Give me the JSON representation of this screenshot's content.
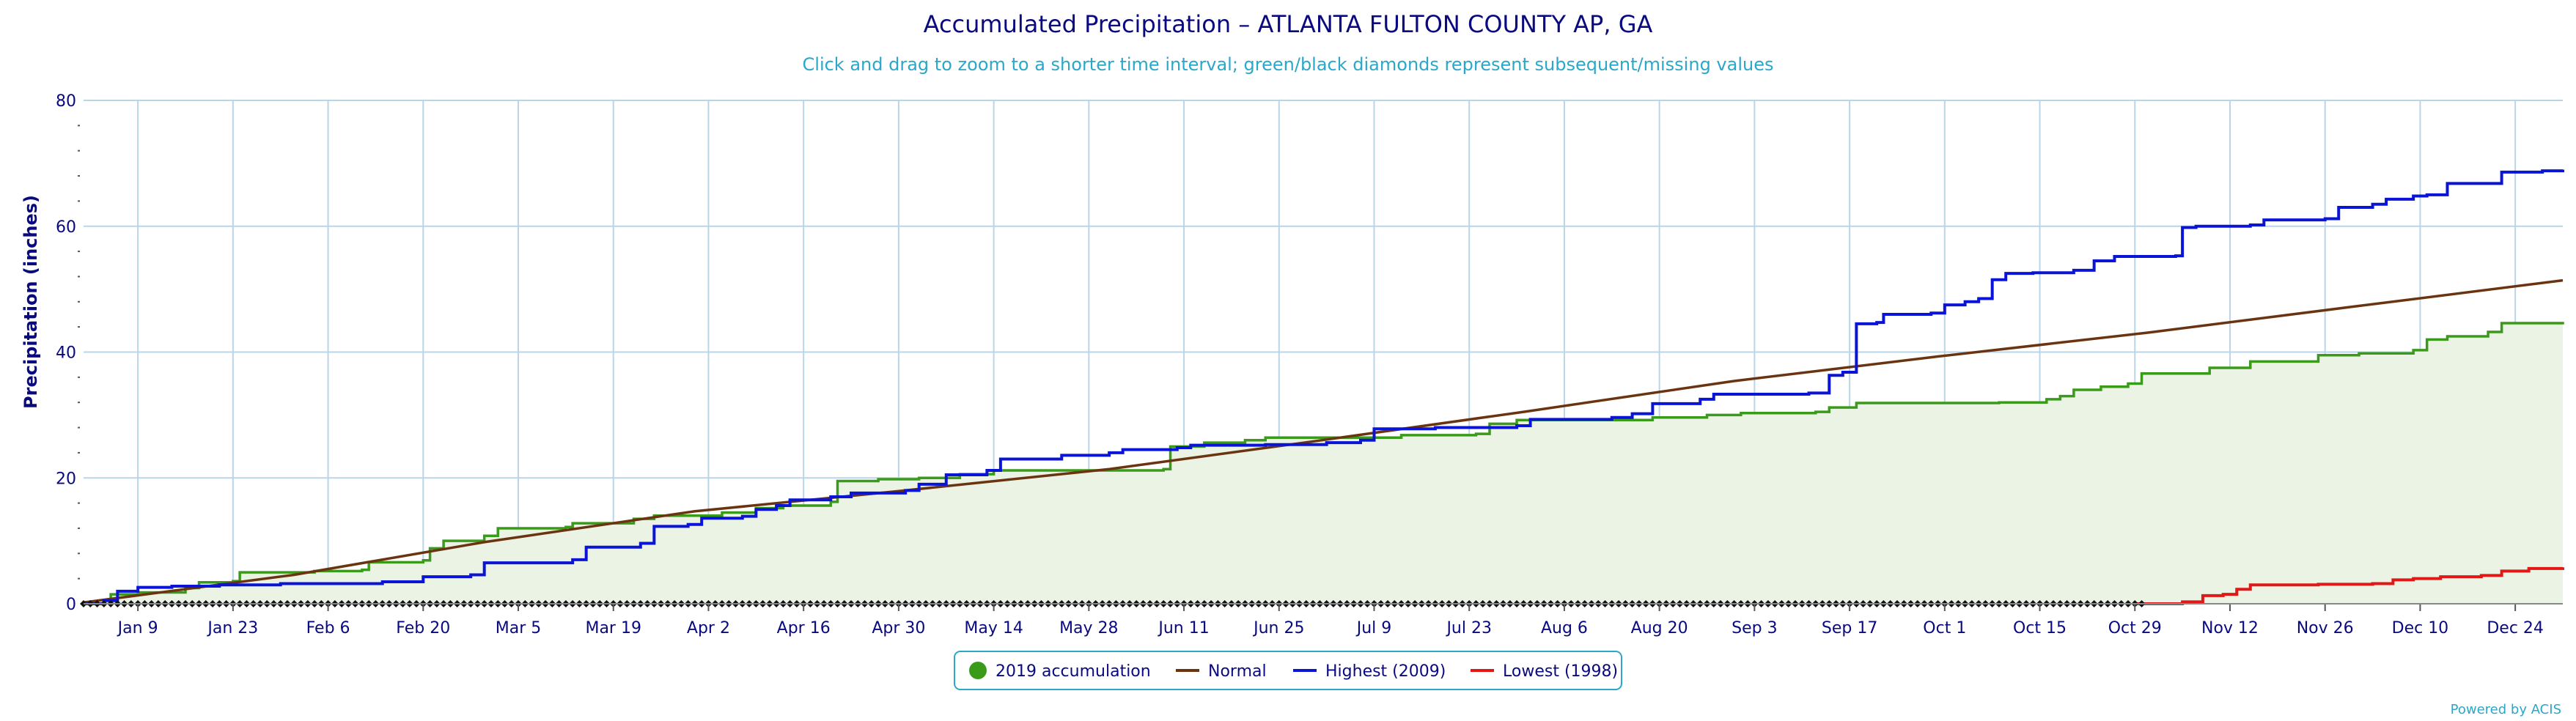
{
  "chart_data": {
    "type": "line",
    "title": "Accumulated Precipitation – ATLANTA FULTON COUNTY AP, GA",
    "subtitle": "Click and drag to zoom to a shorter time interval; green/black diamonds represent subsequent/missing values",
    "ylabel": "Precipitation (inches)",
    "xlabel": "",
    "ylim": [
      0,
      80
    ],
    "y_ticks": [
      0,
      20,
      40,
      60,
      80
    ],
    "x_range_days": [
      1,
      366
    ],
    "x_ticks": [
      {
        "label": "Jan 9",
        "day": 9
      },
      {
        "label": "Jan 23",
        "day": 23
      },
      {
        "label": "Feb 6",
        "day": 37
      },
      {
        "label": "Feb 20",
        "day": 51
      },
      {
        "label": "Mar 5",
        "day": 65
      },
      {
        "label": "Mar 19",
        "day": 79
      },
      {
        "label": "Apr 2",
        "day": 93
      },
      {
        "label": "Apr 16",
        "day": 107
      },
      {
        "label": "Apr 30",
        "day": 121
      },
      {
        "label": "May 14",
        "day": 135
      },
      {
        "label": "May 28",
        "day": 149
      },
      {
        "label": "Jun 11",
        "day": 163
      },
      {
        "label": "Jun 25",
        "day": 177
      },
      {
        "label": "Jul 9",
        "day": 191
      },
      {
        "label": "Jul 23",
        "day": 205
      },
      {
        "label": "Aug 6",
        "day": 219
      },
      {
        "label": "Aug 20",
        "day": 233
      },
      {
        "label": "Sep 3",
        "day": 247
      },
      {
        "label": "Sep 17",
        "day": 261
      },
      {
        "label": "Oct 1",
        "day": 275
      },
      {
        "label": "Oct 15",
        "day": 289
      },
      {
        "label": "Oct 29",
        "day": 303
      },
      {
        "label": "Nov 12",
        "day": 317
      },
      {
        "label": "Nov 26",
        "day": 331
      },
      {
        "label": "Dec 10",
        "day": 345
      },
      {
        "label": "Dec 24",
        "day": 359
      }
    ],
    "grid": true,
    "legend_position": "bottom-center",
    "colors": {
      "accumulation": "#3a9a1a",
      "accumulation_fill": "#eaf3e4",
      "normal": "#6b3410",
      "highest": "#0a14d6",
      "lowest": "#e01818",
      "diamond": "#111111",
      "grid": "#b9d6e8",
      "text": "#0a0a80"
    },
    "missing_marker_range_days": [
      1,
      304
    ],
    "series": [
      {
        "name": "2019 accumulation",
        "style": "step-area",
        "points": [
          [
            1,
            0
          ],
          [
            4,
            0.5
          ],
          [
            5,
            1.5
          ],
          [
            9,
            1.8
          ],
          [
            16,
            2.5
          ],
          [
            18,
            3.4
          ],
          [
            23,
            3.6
          ],
          [
            24,
            5.0
          ],
          [
            35,
            5.2
          ],
          [
            42,
            5.4
          ],
          [
            43,
            6.6
          ],
          [
            51,
            6.9
          ],
          [
            52,
            8.8
          ],
          [
            54,
            10.0
          ],
          [
            60,
            10.8
          ],
          [
            62,
            12.0
          ],
          [
            72,
            12.2
          ],
          [
            73,
            12.8
          ],
          [
            82,
            13.5
          ],
          [
            85,
            14.0
          ],
          [
            95,
            14.5
          ],
          [
            100,
            15.2
          ],
          [
            104,
            15.6
          ],
          [
            111,
            16.2
          ],
          [
            112,
            19.5
          ],
          [
            118,
            19.8
          ],
          [
            124,
            20.0
          ],
          [
            130,
            20.6
          ],
          [
            135,
            21.2
          ],
          [
            160,
            21.4
          ],
          [
            161,
            25.0
          ],
          [
            166,
            25.6
          ],
          [
            172,
            26.0
          ],
          [
            175,
            26.4
          ],
          [
            195,
            26.8
          ],
          [
            206,
            27.0
          ],
          [
            208,
            28.6
          ],
          [
            212,
            29.2
          ],
          [
            232,
            29.6
          ],
          [
            240,
            30.0
          ],
          [
            245,
            30.3
          ],
          [
            256,
            30.5
          ],
          [
            258,
            31.2
          ],
          [
            262,
            31.9
          ],
          [
            283,
            32.0
          ],
          [
            290,
            32.5
          ],
          [
            292,
            33.0
          ],
          [
            294,
            34.0
          ],
          [
            298,
            34.5
          ],
          [
            302,
            35.0
          ],
          [
            304,
            36.6
          ],
          [
            314,
            37.5
          ],
          [
            320,
            38.5
          ],
          [
            330,
            39.5
          ],
          [
            336,
            39.8
          ],
          [
            344,
            40.3
          ],
          [
            346,
            42.0
          ],
          [
            349,
            42.5
          ],
          [
            355,
            43.2
          ],
          [
            357,
            44.6
          ],
          [
            366,
            44.8
          ]
        ]
      },
      {
        "name": "Normal",
        "style": "line",
        "points": [
          [
            1,
            0.2
          ],
          [
            32,
            4.6
          ],
          [
            60,
            9.8
          ],
          [
            91,
            14.7
          ],
          [
            121,
            17.9
          ],
          [
            152,
            21.4
          ],
          [
            182,
            25.8
          ],
          [
            213,
            30.5
          ],
          [
            244,
            35.4
          ],
          [
            274,
            39.3
          ],
          [
            305,
            43.1
          ],
          [
            335,
            47.2
          ],
          [
            366,
            51.4
          ]
        ]
      },
      {
        "name": "Highest (2009)",
        "style": "step-line",
        "points": [
          [
            1,
            0
          ],
          [
            4,
            0.5
          ],
          [
            6,
            2.0
          ],
          [
            8,
            2.0
          ],
          [
            9,
            2.6
          ],
          [
            14,
            2.8
          ],
          [
            21,
            3.0
          ],
          [
            30,
            3.2
          ],
          [
            45,
            3.5
          ],
          [
            51,
            4.3
          ],
          [
            58,
            4.6
          ],
          [
            60,
            6.5
          ],
          [
            73,
            7.0
          ],
          [
            75,
            9.0
          ],
          [
            83,
            9.6
          ],
          [
            85,
            12.3
          ],
          [
            90,
            12.6
          ],
          [
            92,
            13.6
          ],
          [
            98,
            13.9
          ],
          [
            100,
            15.0
          ],
          [
            103,
            15.6
          ],
          [
            105,
            16.5
          ],
          [
            111,
            17.0
          ],
          [
            114,
            17.6
          ],
          [
            122,
            18.0
          ],
          [
            124,
            19.0
          ],
          [
            128,
            20.5
          ],
          [
            134,
            21.2
          ],
          [
            136,
            23.0
          ],
          [
            145,
            23.6
          ],
          [
            152,
            24.0
          ],
          [
            154,
            24.5
          ],
          [
            162,
            24.8
          ],
          [
            164,
            25.2
          ],
          [
            175,
            25.3
          ],
          [
            184,
            25.6
          ],
          [
            189,
            26.0
          ],
          [
            191,
            27.8
          ],
          [
            200,
            28.0
          ],
          [
            212,
            28.3
          ],
          [
            214,
            29.3
          ],
          [
            226,
            29.6
          ],
          [
            229,
            30.2
          ],
          [
            232,
            31.8
          ],
          [
            239,
            32.5
          ],
          [
            241,
            33.3
          ],
          [
            255,
            33.5
          ],
          [
            258,
            36.3
          ],
          [
            260,
            36.8
          ],
          [
            262,
            44.5
          ],
          [
            265,
            44.7
          ],
          [
            266,
            46.0
          ],
          [
            273,
            46.2
          ],
          [
            275,
            47.5
          ],
          [
            278,
            48.0
          ],
          [
            280,
            48.5
          ],
          [
            282,
            51.5
          ],
          [
            284,
            52.5
          ],
          [
            288,
            52.6
          ],
          [
            294,
            53.0
          ],
          [
            297,
            54.5
          ],
          [
            300,
            55.2
          ],
          [
            309,
            55.3
          ],
          [
            310,
            59.8
          ],
          [
            312,
            60.0
          ],
          [
            320,
            60.2
          ],
          [
            322,
            61.0
          ],
          [
            331,
            61.2
          ],
          [
            333,
            63.0
          ],
          [
            338,
            63.5
          ],
          [
            340,
            64.3
          ],
          [
            344,
            64.8
          ],
          [
            346,
            65.0
          ],
          [
            349,
            66.8
          ],
          [
            357,
            68.6
          ],
          [
            363,
            68.8
          ],
          [
            366,
            69.0
          ]
        ]
      },
      {
        "name": "Lowest (1998)",
        "style": "step-line",
        "points": [
          [
            303,
            0
          ],
          [
            310,
            0.3
          ],
          [
            313,
            1.3
          ],
          [
            316,
            1.5
          ],
          [
            318,
            2.3
          ],
          [
            320,
            3.0
          ],
          [
            330,
            3.1
          ],
          [
            338,
            3.2
          ],
          [
            341,
            3.8
          ],
          [
            344,
            4.0
          ],
          [
            348,
            4.3
          ],
          [
            354,
            4.5
          ],
          [
            357,
            5.2
          ],
          [
            361,
            5.6
          ],
          [
            366,
            5.8
          ]
        ]
      }
    ]
  },
  "legend": {
    "items": [
      {
        "label": "2019 accumulation"
      },
      {
        "label": "Normal"
      },
      {
        "label": "Highest (2009)"
      },
      {
        "label": "Lowest (1998)"
      }
    ]
  },
  "credit": "Powered by ACIS"
}
